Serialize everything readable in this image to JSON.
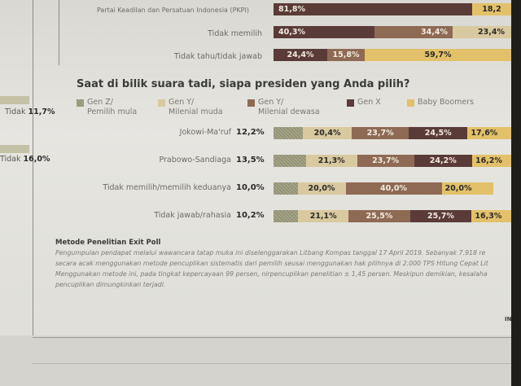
{
  "top_rows": [
    {
      "label": "Partai Keadilan dan Persatuan Indonesia (PKPI)",
      "values": [
        "81,8%",
        "18,2"
      ]
    },
    {
      "label": "Tidak memilih",
      "values": [
        "40,3%",
        "34,4%",
        "23,4%"
      ]
    },
    {
      "label": "Tidak tahu/tidak jawab",
      "values": [
        "24,4%",
        "15,8%",
        "59,7%"
      ]
    }
  ],
  "side_texts": {
    "item1_label": "Tidak",
    "item1_value": "11,7%",
    "item2_label": "Tidak",
    "item2_value": "16,0%"
  },
  "chart_data": {
    "type": "bar",
    "title": "Saat di bilik suara tadi, siapa presiden yang Anda pilih?",
    "legend": [
      {
        "line1": "Gen Z/",
        "line2": "Pemilih mula",
        "color": "#8c8a6e"
      },
      {
        "line1": "Gen Y/",
        "line2": "Milenial muda",
        "color": "#d9c9a0"
      },
      {
        "line1": "Gen Y/",
        "line2": "Milenial dewasa",
        "color": "#8e6a55"
      },
      {
        "line1": "Gen X",
        "line2": "",
        "color": "#5a3b38"
      },
      {
        "line1": "Baby Boomers",
        "line2": "",
        "color": "#e3c16a"
      }
    ],
    "categories": [
      "Jokowi-Ma'ruf",
      "Prabowo-Sandiaga",
      "Tidak memilih/memilih keduanya",
      "Tidak jawab/rahasia"
    ],
    "series": [
      {
        "name": "Gen Z/ Pemilih mula",
        "values": [
          12.2,
          13.5,
          10.0,
          10.2
        ]
      },
      {
        "name": "Gen Y/ Milenial muda",
        "values": [
          20.4,
          21.3,
          20.0,
          21.1
        ]
      },
      {
        "name": "Gen Y/ Milenial dewasa",
        "values": [
          23.7,
          23.7,
          40.0,
          25.5
        ]
      },
      {
        "name": "Gen X",
        "values": [
          24.5,
          24.2,
          null,
          25.7
        ]
      },
      {
        "name": "Baby Boomers",
        "values": [
          17.6,
          16.2,
          20.0,
          16.3
        ]
      }
    ],
    "labels": [
      [
        "12,2%",
        "20,4%",
        "23,7%",
        "24,5%",
        "17,6%"
      ],
      [
        "13,5%",
        "21,3%",
        "23,7%",
        "24,2%",
        "16,2%"
      ],
      [
        "10,0%",
        "20,0%",
        "40,0%",
        "",
        "20,0%"
      ],
      [
        "10,2%",
        "21,1%",
        "25,5%",
        "25,7%",
        "16,3%"
      ]
    ]
  },
  "method": {
    "title": "Metode Penelitian Exit Poll",
    "lines": [
      "Pengumpulan pendapat melalui wawancara tatap muka ini diselenggarakan Litbang Kompas tanggal 17 April 2019. Sebanyak 7.918 re",
      "secara acak menggunakan metode pencuplikan sistematis dari pemilih seusai menggunakan hak pilihnya di 2.000 TPS Hitung Cepat Lit",
      "Menggunakan metode ini, pada tingkat kepercayaan 99 persen, nirpencuplikan penelitian ± 1,45 persen. Meskipun demikian, kesalaha",
      "pencuplikan dimungkinkan terjadi."
    ]
  },
  "corner_text": "IN"
}
